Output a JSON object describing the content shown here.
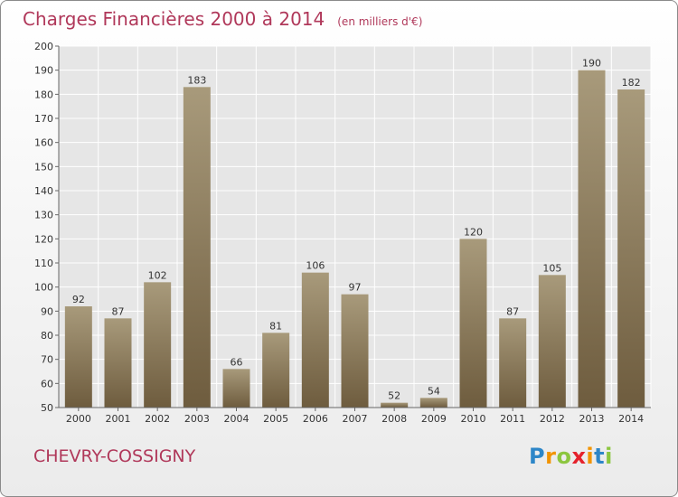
{
  "title": "Charges Financières 2000 à 2014",
  "subtitle": "(en milliers d'€)",
  "commune": "CHEVRY-COSSIGNY",
  "logo": "Proxiti",
  "colors": {
    "accent": "#b0385a",
    "bar_top": "#a89a7b",
    "bar_bottom": "#6e5c3e"
  },
  "chart_data": {
    "type": "bar",
    "title": "Charges Financières 2000 à 2014",
    "subtitle": "(en milliers d'€)",
    "categories": [
      "2000",
      "2001",
      "2002",
      "2003",
      "2004",
      "2005",
      "2006",
      "2007",
      "2008",
      "2009",
      "2010",
      "2011",
      "2012",
      "2013",
      "2014"
    ],
    "values": [
      92,
      87,
      102,
      183,
      66,
      81,
      106,
      97,
      52,
      54,
      120,
      87,
      105,
      190,
      182
    ],
    "ylim": [
      50,
      200
    ],
    "yticks": [
      50,
      60,
      70,
      80,
      90,
      100,
      110,
      120,
      130,
      140,
      150,
      160,
      170,
      180,
      190,
      200
    ],
    "grid": true,
    "data_labels": true
  }
}
